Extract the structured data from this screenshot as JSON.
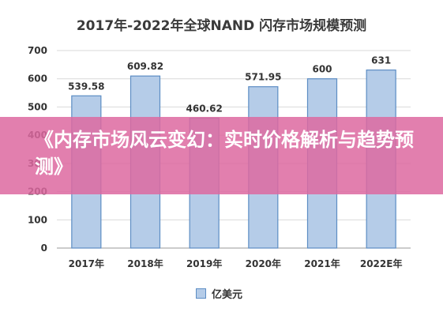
{
  "chart_data": {
    "type": "bar",
    "title": "2017年-2022年全球NAND 闪存市场规模预测",
    "categories": [
      "2017年",
      "2018年",
      "2019年",
      "2020年",
      "2021年",
      "2022E年"
    ],
    "series": [
      {
        "name": "亿美元",
        "values": [
          539.58,
          609.82,
          460.62,
          571.95,
          600,
          631
        ]
      }
    ],
    "data_labels": [
      "539.58",
      "609.82",
      "460.62",
      "571.95",
      "600",
      "631"
    ],
    "ylim": [
      0,
      700
    ],
    "yticks": [
      0,
      100,
      200,
      300,
      400,
      500,
      600,
      700
    ],
    "grid": true,
    "legend_position": "bottom",
    "bar_fill": "#b5cce8",
    "bar_stroke": "#5d8dc4"
  },
  "overlay": {
    "text": "《内存市场风云变幻：实时价格解析与趋势预测》",
    "color": "#dd69a0"
  }
}
